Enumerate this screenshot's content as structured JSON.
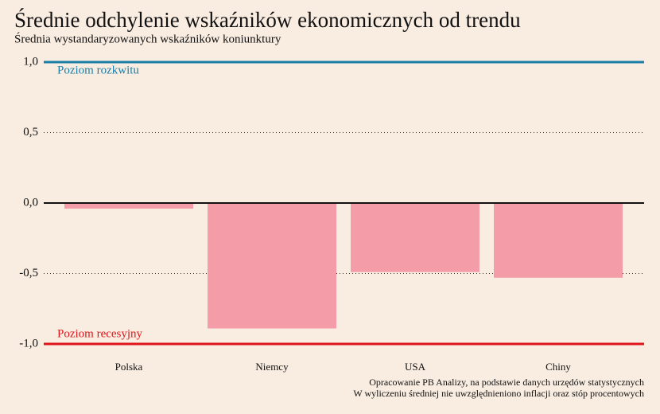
{
  "chart_data": {
    "type": "bar",
    "title": "Średnie odchylenie wskaźników ekonomicznych od trendu",
    "subtitle": "Średnia wystandaryzowanych wskaźników koniunktury",
    "categories": [
      "Polska",
      "Niemcy",
      "USA",
      "Chiny"
    ],
    "values": [
      -0.04,
      -0.89,
      -0.49,
      -0.53
    ],
    "color": "#f59ca9",
    "ylim": [
      -1,
      1
    ],
    "yticks": [
      {
        "value": 1,
        "label": "1,0"
      },
      {
        "value": 0.5,
        "label": "0,5"
      },
      {
        "value": 0,
        "label": "0,0"
      },
      {
        "value": -0.5,
        "label": "-0,5"
      },
      {
        "value": -1,
        "label": "-1,0"
      }
    ],
    "grid": true,
    "reference_lines": [
      {
        "value": 1,
        "label": "Poziom rozkwitu",
        "color": "#1a7ea8"
      },
      {
        "value": -1,
        "label": "Poziom recesyjny",
        "color": "#e0141b"
      }
    ],
    "notes": [
      "Opracowanie PB Analizy, na podstawie danych urzędów statystycznych",
      "W wyliczeniu średniej nie uwzględnieniono inflacji oraz stóp procentowych"
    ]
  }
}
